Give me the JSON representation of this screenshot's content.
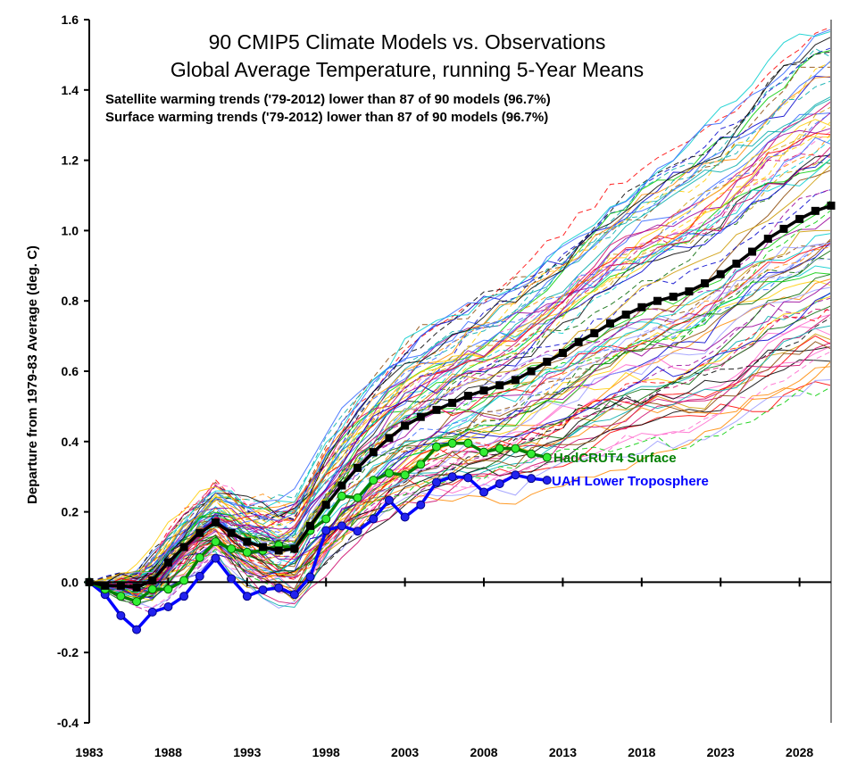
{
  "chart_data": {
    "type": "line",
    "title": "90 CMIP5 Climate Models vs. Observations",
    "subtitle": "Global Average Temperature, running 5-Year Means",
    "annotations": [
      "Satellite warming trends ('79-2012) lower than 87 of 90 models (96.7%)",
      "Surface warming trends ('79-2012) lower than 87 of 90 models (96.7%)"
    ],
    "xlabel": "",
    "ylabel": "Departure from 1979-83 Average (deg. C)",
    "xlim": [
      1983,
      2030
    ],
    "ylim": [
      -0.4,
      1.6
    ],
    "x_ticks": [
      1983,
      1988,
      1993,
      1998,
      2003,
      2008,
      2013,
      2018,
      2023,
      2028
    ],
    "y_ticks": [
      "-0.4",
      "-0.2",
      "0.0",
      "0.2",
      "0.4",
      "0.6",
      "0.8",
      "1.0",
      "1.2",
      "1.4",
      "1.6"
    ],
    "grid": false,
    "model_count": 90,
    "series": [
      {
        "name": "",
        "role": "model-mean",
        "color": "#000000",
        "marker": "square",
        "x_start": 1983,
        "values": [
          0,
          -0.01,
          -0.01,
          -0.015,
          0.005,
          0.056,
          0.1,
          0.14,
          0.17,
          0.14,
          0.115,
          0.1,
          0.09,
          0.095,
          0.16,
          0.22,
          0.275,
          0.325,
          0.37,
          0.41,
          0.445,
          0.47,
          0.49,
          0.51,
          0.53,
          0.545,
          0.56,
          0.575,
          0.6,
          0.627,
          0.652,
          0.683,
          0.708,
          0.736,
          0.761,
          0.782,
          0.8,
          0.812,
          0.827,
          0.85,
          0.876,
          0.906,
          0.94,
          0.977,
          1.005,
          1.033,
          1.056,
          1.071
        ]
      },
      {
        "name": "HadCRUT4 Surface",
        "color": "#008000",
        "marker_color": "#33ee33",
        "marker": "circle",
        "x_start": 1983,
        "values": [
          0,
          -0.02,
          -0.04,
          -0.055,
          -0.02,
          -0.02,
          0.005,
          0.07,
          0.115,
          0.095,
          0.085,
          0.09,
          0.105,
          0.095,
          0.147,
          0.18,
          0.245,
          0.24,
          0.29,
          0.31,
          0.305,
          0.335,
          0.385,
          0.395,
          0.395,
          0.37,
          0.38,
          0.38,
          0.365,
          0.355
        ]
      },
      {
        "name": "UAH Lower Troposphere",
        "color": "#0000ff",
        "marker_color": "#2222ee",
        "marker": "circle",
        "x_start": 1983,
        "values": [
          0,
          -0.035,
          -0.095,
          -0.135,
          -0.085,
          -0.07,
          -0.04,
          0.017,
          0.068,
          0.01,
          -0.04,
          -0.022,
          -0.016,
          -0.035,
          0.015,
          0.147,
          0.16,
          0.145,
          0.18,
          0.233,
          0.185,
          0.22,
          0.284,
          0.3,
          0.297,
          0.256,
          0.28,
          0.305,
          0.295,
          0.29
        ]
      }
    ]
  }
}
